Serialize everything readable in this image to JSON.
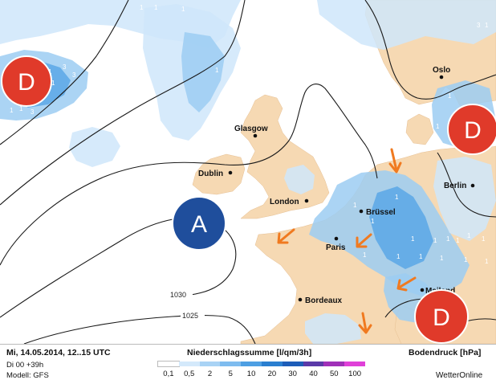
{
  "map": {
    "cities": [
      {
        "name": "Glasgow"
      },
      {
        "name": "Dublin"
      },
      {
        "name": "London"
      },
      {
        "name": "Brüssel"
      },
      {
        "name": "Paris"
      },
      {
        "name": "Bordeaux"
      },
      {
        "name": "Oslo"
      },
      {
        "name": "Berlin"
      },
      {
        "name": "Mailand"
      }
    ],
    "pressure_systems": [
      {
        "letter": "D",
        "type": "low",
        "position": "west",
        "color": "#e03a2a"
      },
      {
        "letter": "D",
        "type": "low",
        "position": "scandinavia",
        "color": "#e03a2a"
      },
      {
        "letter": "A",
        "type": "high",
        "position": "west of Ireland",
        "color": "#1f4e9c"
      },
      {
        "letter": "D",
        "type": "low",
        "position": "northern Italy",
        "color": "#e03a2a"
      }
    ],
    "isobar_labels": [
      "1030",
      "1025"
    ],
    "precip_numbers": [
      "3",
      "1",
      "3",
      "1",
      "1",
      "1",
      "3",
      "1",
      "1",
      "1",
      "1",
      "1",
      "3",
      "1",
      "1",
      "1",
      "1",
      "1",
      "1",
      "1",
      "1",
      "1",
      "1",
      "1",
      "1",
      "1",
      "1",
      "1",
      "1",
      "1",
      "1",
      "1",
      "1"
    ],
    "colors": {
      "sea": "#ffffff",
      "land": "#f6d9b3",
      "precip_light": "#cfe6fa",
      "precip_medium": "#9cccf2",
      "precip_heavy": "#5aa7e6",
      "isobar": "#1a1a1a",
      "arrow": "#f07a20"
    }
  },
  "footer": {
    "date": "Mi, 14.05.2014, 12..15 UTC",
    "run": "Di 00 +39h",
    "model": "Modell: GFS",
    "legend_title": "Niederschlagssumme [l/qm/3h]",
    "pressure_title": "Bodendruck [hPa]",
    "brand": "WetterOnline",
    "scale_labels": [
      "0,1",
      "0,5",
      "2",
      "5",
      "10",
      "20",
      "30",
      "40",
      "50",
      "100"
    ],
    "scale_colors": [
      "#ffffff",
      "#d4e9fb",
      "#a9d3f5",
      "#7ebcef",
      "#4d9fe3",
      "#2a7fd0",
      "#1d5db8",
      "#5b3aa8",
      "#a030b8",
      "#e040d8"
    ]
  }
}
